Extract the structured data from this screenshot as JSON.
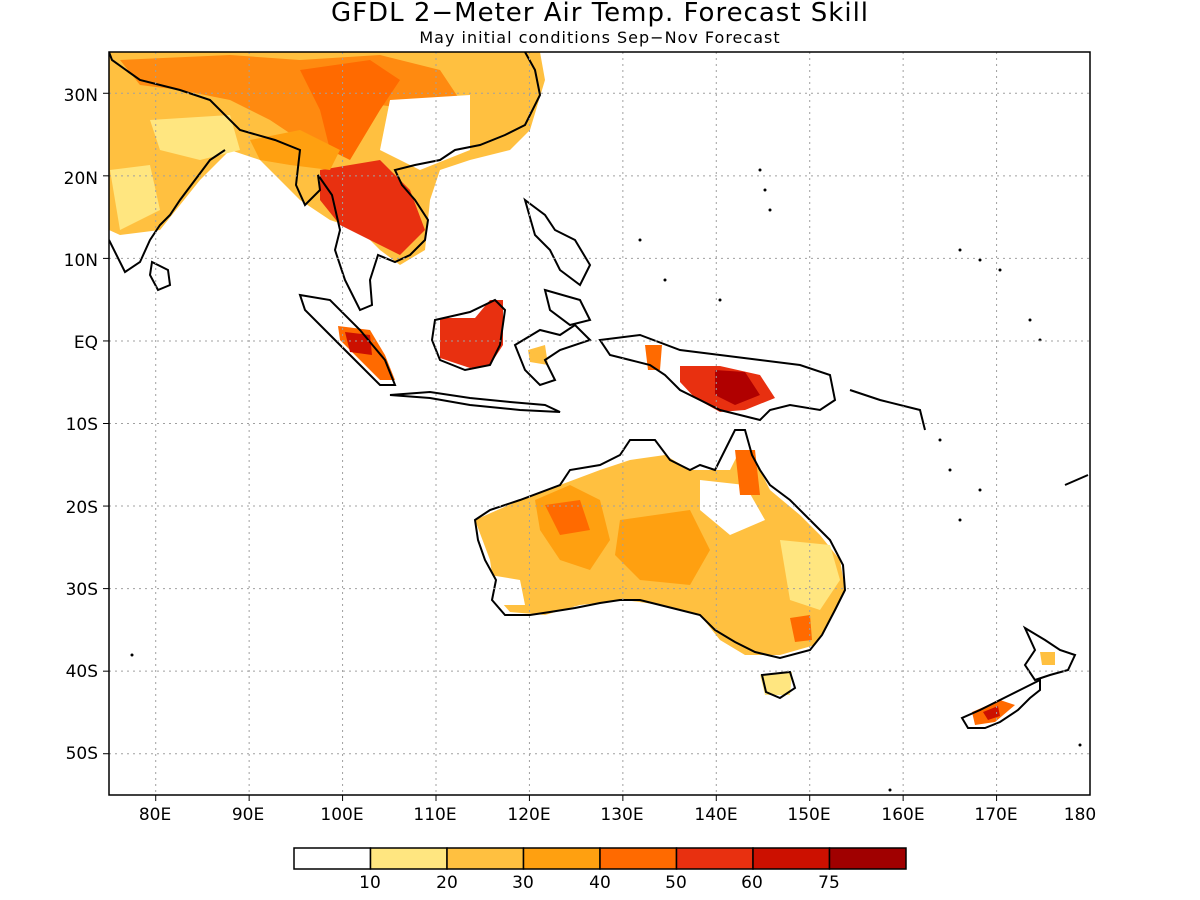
{
  "title": "GFDL 2−Meter Air Temp. Forecast Skill",
  "subtitle": "May initial conditions  Sep−Nov Forecast",
  "lat_labels": [
    "30N",
    "20N",
    "10N",
    "EQ",
    "10S",
    "20S",
    "30S",
    "40S",
    "50S"
  ],
  "lon_labels": [
    "80E",
    "90E",
    "100E",
    "110E",
    "120E",
    "130E",
    "140E",
    "150E",
    "160E",
    "170E",
    "180"
  ],
  "colorbar": {
    "colors": [
      "#ffffff",
      "#ffe680",
      "#ffc040",
      "#ffa010",
      "#ff6a00",
      "#e83010",
      "#cc1000",
      "#a00000"
    ],
    "labels": [
      "10",
      "20",
      "30",
      "40",
      "50",
      "60",
      "75"
    ]
  },
  "chart_data": {
    "type": "heatmap",
    "title": "GFDL 2−Meter Air Temp. Forecast Skill",
    "subtitle": "May initial conditions  Sep−Nov Forecast",
    "xlim": [
      75,
      180
    ],
    "ylim": [
      -55,
      35
    ],
    "grid": true,
    "levels": [
      10,
      20,
      30,
      40,
      50,
      60,
      75
    ],
    "regions": [
      {
        "name": "",
        "lon": [
          75,
          135
        ],
        "lat": [
          18,
          35
        ],
        "skill": 40
      },
      {
        "name": "",
        "lon": [
          97,
          110
        ],
        "lat": [
          8,
          22
        ],
        "skill": 60
      },
      {
        "name": "",
        "lon": [
          109,
          119
        ],
        "lat": [
          -4,
          5
        ],
        "skill": 60
      },
      {
        "name": "",
        "lon": [
          134,
          150
        ],
        "lat": [
          -9,
          -3
        ],
        "skill": 60
      },
      {
        "name": "",
        "lon": [
          113,
          154
        ],
        "lat": [
          -39,
          -11
        ],
        "skill": 30
      },
      {
        "name": "",
        "lon": [
          167,
          175
        ],
        "lat": [
          -47,
          -44
        ],
        "skill": 60
      }
    ]
  }
}
